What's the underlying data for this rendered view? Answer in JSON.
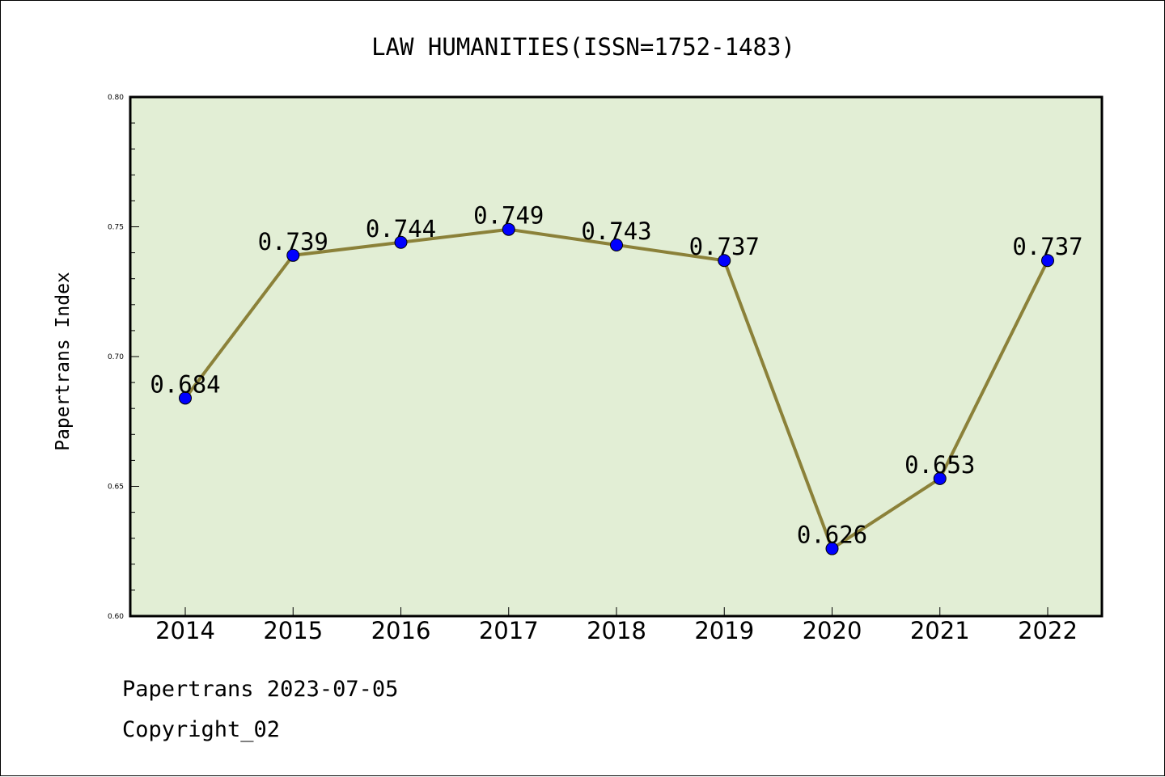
{
  "chart_data": {
    "type": "line",
    "title": "LAW HUMANITIES(ISSN=1752-1483)",
    "xlabel": "",
    "ylabel": "Papertrans Index",
    "categories": [
      "2014",
      "2015",
      "2016",
      "2017",
      "2018",
      "2019",
      "2020",
      "2021",
      "2022"
    ],
    "series": [
      {
        "values": [
          0.684,
          0.739,
          0.744,
          0.749,
          0.743,
          0.737,
          0.626,
          0.653,
          0.737
        ],
        "data_labels": [
          "0.684",
          "0.739",
          "0.744",
          "0.749",
          "0.743",
          "0.737",
          "0.626",
          "0.653",
          "0.737"
        ],
        "line_color": "#8B8139",
        "marker_color": "#0000FF"
      }
    ],
    "ylim": [
      0.6,
      0.8
    ],
    "yticks": [
      "0.60",
      "0.65",
      "0.70",
      "0.75",
      "0.80"
    ],
    "grid": false,
    "legend": "none",
    "plot_background": "#E2EED5"
  },
  "footer": {
    "date_line": "Papertrans 2023-07-05",
    "copyright_line": "Copyright_02"
  }
}
